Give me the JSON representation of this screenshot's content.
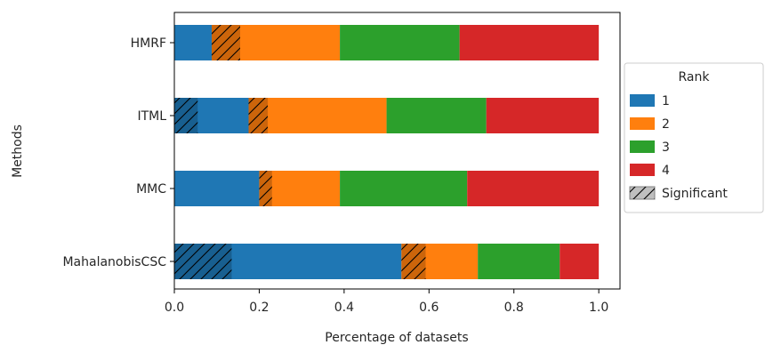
{
  "chart_data": {
    "type": "bar",
    "orientation": "horizontal",
    "stacked": true,
    "categories": [
      "HMRF",
      "ITML",
      "MMC",
      "MahalanobisCSC"
    ],
    "xlabel": "Percentage of datasets",
    "ylabel": "Methods",
    "xlim": [
      0,
      1.05
    ],
    "xticks": [
      "0.0",
      "0.2",
      "0.4",
      "0.6",
      "0.8",
      "1.0"
    ],
    "grid": false,
    "legend": {
      "title": "Rank",
      "placement": "center-right-outside",
      "entries": [
        "1",
        "2",
        "3",
        "4"
      ],
      "hatch_entry": "Significant"
    },
    "series": [
      {
        "name": "1",
        "color": "#1f77b4",
        "values": [
          0.088,
          0.175,
          0.2,
          0.535
        ],
        "significant": [
          0.0,
          0.055,
          0.0,
          0.135
        ]
      },
      {
        "name": "2",
        "color": "#ff7f0e",
        "values": [
          0.302,
          0.325,
          0.19,
          0.18
        ],
        "significant": [
          0.067,
          0.045,
          0.03,
          0.057
        ]
      },
      {
        "name": "3",
        "color": "#2ca02c",
        "values": [
          0.282,
          0.235,
          0.3,
          0.193
        ],
        "significant": [
          0,
          0,
          0,
          0
        ]
      },
      {
        "name": "4",
        "color": "#d62728",
        "values": [
          0.328,
          0.265,
          0.31,
          0.092
        ],
        "significant": [
          0,
          0,
          0,
          0
        ]
      }
    ]
  }
}
